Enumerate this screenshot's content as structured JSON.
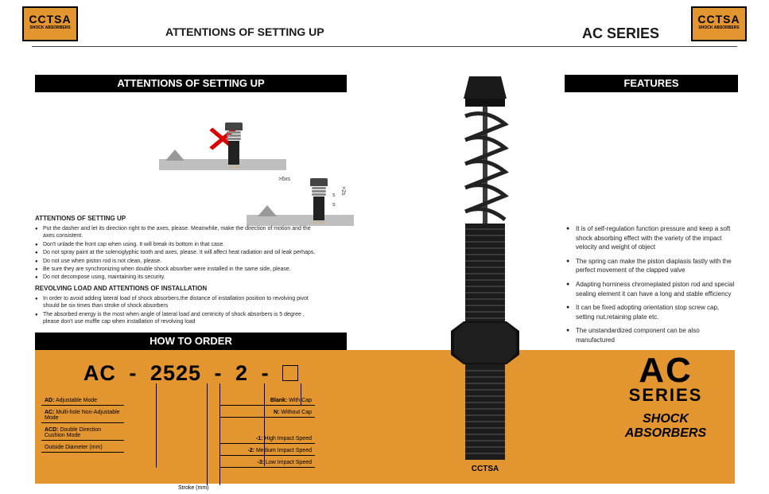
{
  "brand": {
    "name": "CCTSA",
    "sub": "SHOCK ABSORBERS"
  },
  "header": {
    "left_title": "ATTENTIONS OF SETTING UP",
    "right_title": "AC SERIES"
  },
  "bars": {
    "attentions": "ATTENTIONS OF SETTING UP",
    "features": "FEATURES",
    "how_to_order": "HOW TO ORDER"
  },
  "diagram": {
    "dim_label": ">6xs",
    "s1": "s",
    "s2": "s",
    "sgap": ">2s"
  },
  "attentions": {
    "heading1": "ATTENTIONS OF SETTING UP",
    "items1": [
      "Put the dasher and let its direction right to the axes, please. Meanwhile, make the direction of motion and the axes consistent.",
      "Don't unlade the front cap when using. It will break its bottom in that case.",
      "Do not spray paint at the solenoglyphic tooth and axes, please. It will affect heat radiation and oil leak perhaps.",
      "Do not use when piston rod is not clean, please.",
      "Be sure they are synchronizing when double shock absorber were installed in the same side, please.",
      "Do not decompose using, maintaining its security."
    ],
    "heading2": "REVOLVING LOAD AND ATTENTIONS OF INSTALLATION",
    "items2": [
      "In order to avoid adding lateral load of shock absorbers,the distance of installation position to revolving pivot should be six times than stroke of shock absorbers",
      "The absorbed energy is the most when angle of lateral load and centricity of shock absorbers is 5 degree , please don't use muffle cap when installation of  revolving load"
    ]
  },
  "features": {
    "items": [
      "It is of self-regulation function pressure and keep a soft shock absorbing effect with the variety of the impact velocity and weight of object",
      "The spring can make the piston diaplasis fastly with the perfect movement of the clapped valve",
      "Adapting horniness chromeplated piston rod and special  sealing element it can have a long and stable efficiency",
      "It can be fixed adopting orientation stop screw cap, setting nut,retaining plate etc.",
      "The unstandardized component can be also manufactured"
    ]
  },
  "order": {
    "segments": [
      "AC",
      "-",
      "2525",
      "-",
      "2",
      "-"
    ],
    "left_opts": [
      {
        "code": "AD:",
        "label": "Adjustable Mode"
      },
      {
        "code": "AC:",
        "label": "Multi-hole Non-Adjustable Mode"
      },
      {
        "code": "ACD:",
        "label": "Double Direction Cushion Mode"
      },
      {
        "code": "",
        "label": "Outside Diameter   (mm)"
      }
    ],
    "stroke_label": "Stroke      (mm)",
    "right_opts_top": [
      {
        "code": "Blank:",
        "label": "With Cap"
      },
      {
        "code": "N:",
        "label": "Without Cap"
      }
    ],
    "right_opts_bot": [
      {
        "code": "-1:",
        "label": "High Impact Speed"
      },
      {
        "code": "-2:",
        "label": "Medium Impact Speed"
      },
      {
        "code": "-3:",
        "label": "Low Impact Speed"
      }
    ]
  },
  "side_title": {
    "l1": "AC",
    "l2": "SERIES",
    "l3": "SHOCK",
    "l4": "ABSORBERS"
  },
  "colors": {
    "orange": "#e39530",
    "black": "#000000",
    "gray": "#bfbfbf",
    "darkgray": "#2a2a2a",
    "red": "#d00020"
  }
}
